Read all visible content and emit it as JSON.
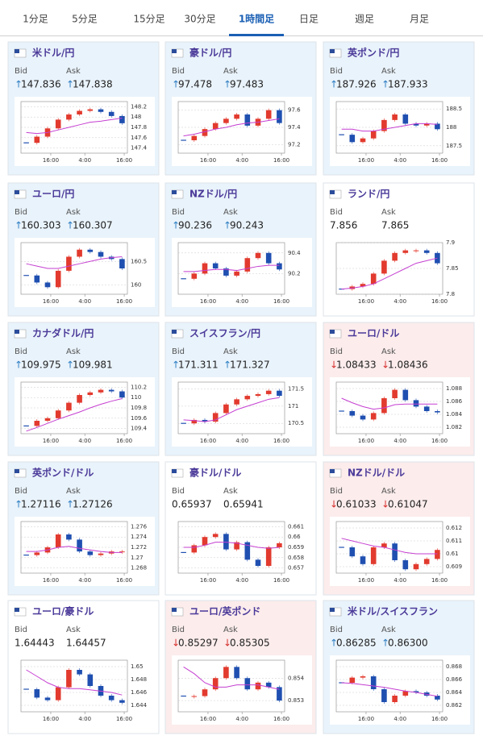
{
  "tabs": {
    "items": [
      "1分足",
      "5分足",
      "15分足",
      "30分足",
      "1時間足",
      "日足",
      "週足",
      "月足"
    ],
    "active": 4
  },
  "labels": {
    "bid": "Bid",
    "ask": "Ask"
  },
  "panels": [
    {
      "name": "米ドル/円",
      "trend": "↑",
      "bid": "147.836",
      "ask": "147.838",
      "chart": {
        "type": "candlestick",
        "ylim": [
          147.3,
          148.3
        ],
        "yticks": [
          147.4,
          147.6,
          147.8,
          148,
          148.2
        ],
        "xticks": [
          "16:00",
          "4:00",
          "16:00"
        ],
        "close": [
          147.5,
          147.62,
          147.78,
          147.95,
          148.05,
          148.12,
          148.15,
          148.1,
          148.02,
          147.88
        ],
        "ma": [
          147.7,
          147.68,
          147.7,
          147.75,
          147.8,
          147.85,
          147.9,
          147.92,
          147.95,
          147.98
        ]
      }
    },
    {
      "name": "豪ドル/円",
      "trend": "↑",
      "bid": "97.478",
      "ask": "97.483",
      "chart": {
        "type": "candlestick",
        "ylim": [
          97.1,
          97.7
        ],
        "yticks": [
          97.2,
          97.4,
          97.6
        ],
        "xticks": [
          "16:00",
          "4:00",
          "16:00"
        ],
        "close": [
          97.25,
          97.3,
          97.38,
          97.45,
          97.5,
          97.55,
          97.42,
          97.5,
          97.6,
          97.45
        ],
        "ma": [
          97.3,
          97.32,
          97.35,
          97.38,
          97.4,
          97.43,
          97.45,
          97.46,
          97.48,
          97.5
        ]
      }
    },
    {
      "name": "英ポンド/円",
      "trend": "↑",
      "bid": "187.926",
      "ask": "187.933",
      "chart": {
        "type": "candlestick",
        "ylim": [
          187.3,
          188.7
        ],
        "yticks": [
          187.5,
          188,
          188.5
        ],
        "xticks": [
          "16:00",
          "4:00",
          "16:00"
        ],
        "close": [
          187.8,
          187.6,
          187.7,
          187.9,
          188.2,
          188.35,
          188.1,
          188.05,
          188.1,
          187.95
        ],
        "ma": [
          187.95,
          187.95,
          187.9,
          187.9,
          187.95,
          188,
          188.05,
          188.1,
          188.1,
          188.08
        ]
      }
    },
    {
      "name": "ユーロ/円",
      "trend": "↑",
      "bid": "160.303",
      "ask": "160.307",
      "chart": {
        "type": "candlestick",
        "ylim": [
          159.8,
          160.9
        ],
        "yticks": [
          160,
          160.5
        ],
        "xticks": [
          "16:00",
          "4:00",
          "16:00"
        ],
        "close": [
          160.2,
          160.05,
          159.95,
          160.3,
          160.6,
          160.75,
          160.7,
          160.6,
          160.55,
          160.35
        ],
        "ma": [
          160.45,
          160.4,
          160.35,
          160.35,
          160.4,
          160.45,
          160.5,
          160.55,
          160.58,
          160.6
        ]
      }
    },
    {
      "name": "NZドル/円",
      "trend": "↑",
      "bid": "90.236",
      "ask": "90.243",
      "chart": {
        "type": "candlestick",
        "ylim": [
          90.0,
          90.5
        ],
        "yticks": [
          90.2,
          90.4
        ],
        "xticks": [
          "16:00",
          "4:00",
          "16:00"
        ],
        "close": [
          90.15,
          90.2,
          90.3,
          90.25,
          90.18,
          90.22,
          90.35,
          90.4,
          90.3,
          90.24
        ],
        "ma": [
          90.22,
          90.22,
          90.23,
          90.24,
          90.24,
          90.23,
          90.25,
          90.27,
          90.28,
          90.28
        ]
      }
    },
    {
      "name": "ランド/円",
      "bid": "7.856",
      "ask": "7.865",
      "chart": {
        "type": "candlestick",
        "ylim": [
          7.8,
          7.9
        ],
        "yticks": [
          7.8,
          7.85,
          7.9
        ],
        "xticks": [
          "16:00",
          "4:00",
          "16:00"
        ],
        "close": [
          7.81,
          7.815,
          7.82,
          7.84,
          7.865,
          7.88,
          7.885,
          7.885,
          7.88,
          7.86
        ],
        "ma": [
          7.81,
          7.812,
          7.815,
          7.82,
          7.83,
          7.84,
          7.85,
          7.86,
          7.865,
          7.87
        ]
      }
    },
    {
      "name": "カナダドル/円",
      "trend": "↑",
      "bid": "109.975",
      "ask": "109.981",
      "chart": {
        "type": "candlestick",
        "ylim": [
          109.3,
          110.3
        ],
        "yticks": [
          109.4,
          109.6,
          109.8,
          110,
          110.2
        ],
        "xticks": [
          "16:00",
          "4:00",
          "16:00"
        ],
        "close": [
          109.45,
          109.55,
          109.6,
          109.75,
          109.9,
          110.05,
          110.1,
          110.15,
          110.12,
          110.0
        ],
        "ma": [
          109.35,
          109.42,
          109.5,
          109.58,
          109.65,
          109.72,
          109.8,
          109.87,
          109.93,
          109.98
        ]
      }
    },
    {
      "name": "スイスフラン/円",
      "trend": "↑",
      "bid": "171.311",
      "ask": "171.327",
      "chart": {
        "type": "candlestick",
        "ylim": [
          170.2,
          171.7
        ],
        "yticks": [
          170.5,
          171,
          171.5
        ],
        "xticks": [
          "16:00",
          "4:00",
          "16:00"
        ],
        "close": [
          170.5,
          170.6,
          170.55,
          170.8,
          171.05,
          171.2,
          171.3,
          171.35,
          171.45,
          171.3
        ],
        "ma": [
          170.6,
          170.58,
          170.55,
          170.6,
          170.75,
          170.9,
          171,
          171.1,
          171.2,
          171.25
        ]
      }
    },
    {
      "name": "ユーロ/ドル",
      "trend": "↓",
      "bid": "1.08433",
      "ask": "1.08436",
      "chart": {
        "type": "candlestick",
        "ylim": [
          1.081,
          1.089
        ],
        "yticks": [
          1.082,
          1.084,
          1.086,
          1.088
        ],
        "xticks": [
          "16:00",
          "4:00",
          "16:00"
        ],
        "close": [
          1.0845,
          1.0838,
          1.0832,
          1.0842,
          1.0865,
          1.0878,
          1.0862,
          1.0852,
          1.0845,
          1.0843
        ],
        "ma": [
          1.0865,
          1.0858,
          1.0852,
          1.0848,
          1.085,
          1.0855,
          1.0856,
          1.0856,
          1.0856,
          1.0856
        ]
      }
    },
    {
      "name": "英ポンド/ドル",
      "trend": "↑",
      "bid": "1.27116",
      "ask": "1.27126",
      "chart": {
        "type": "candlestick",
        "ylim": [
          1.267,
          1.277
        ],
        "yticks": [
          1.268,
          1.27,
          1.272,
          1.274,
          1.276
        ],
        "xticks": [
          "16:00",
          "4:00",
          "16:00"
        ],
        "close": [
          1.2705,
          1.271,
          1.272,
          1.2745,
          1.2735,
          1.2712,
          1.2705,
          1.2708,
          1.2712,
          1.2712
        ],
        "ma": [
          1.2712,
          1.2712,
          1.2715,
          1.272,
          1.2722,
          1.2718,
          1.2715,
          1.2712,
          1.271,
          1.271
        ]
      }
    },
    {
      "name": "豪ドル/ドル",
      "bid": "0.65937",
      "ask": "0.65941",
      "chart": {
        "type": "candlestick",
        "ylim": [
          0.6565,
          0.6615
        ],
        "yticks": [
          0.657,
          0.658,
          0.659,
          0.66,
          0.661
        ],
        "xticks": [
          "16:00",
          "4:00",
          "16:00"
        ],
        "close": [
          0.6585,
          0.6592,
          0.66,
          0.6603,
          0.6588,
          0.6595,
          0.6578,
          0.6572,
          0.659,
          0.6594
        ],
        "ma": [
          0.659,
          0.659,
          0.6592,
          0.6595,
          0.6595,
          0.6594,
          0.6592,
          0.659,
          0.6589,
          0.659
        ]
      }
    },
    {
      "name": "NZドル/ドル",
      "trend": "↓",
      "bid": "0.61033",
      "ask": "0.61047",
      "chart": {
        "type": "candlestick",
        "ylim": [
          0.6085,
          0.6125
        ],
        "yticks": [
          0.609,
          0.61,
          0.611,
          0.612
        ],
        "xticks": [
          "16:00",
          "4:00",
          "16:00"
        ],
        "close": [
          0.6105,
          0.6098,
          0.6092,
          0.6105,
          0.6108,
          0.6095,
          0.6088,
          0.6092,
          0.6096,
          0.6103
        ],
        "ma": [
          0.6112,
          0.611,
          0.6108,
          0.6106,
          0.6105,
          0.6103,
          0.6101,
          0.61,
          0.61,
          0.61
        ]
      }
    },
    {
      "name": "ユーロ/豪ドル",
      "bid": "1.64443",
      "ask": "1.64457",
      "chart": {
        "type": "candlestick",
        "ylim": [
          1.643,
          1.651
        ],
        "yticks": [
          1.644,
          1.646,
          1.648,
          1.65
        ],
        "xticks": [
          "16:00",
          "4:00",
          "16:00"
        ],
        "close": [
          1.6465,
          1.6452,
          1.6448,
          1.6468,
          1.6495,
          1.6488,
          1.647,
          1.6455,
          1.6448,
          1.6444
        ],
        "ma": [
          1.6495,
          1.6485,
          1.6475,
          1.6468,
          1.6466,
          1.6466,
          1.6464,
          1.6462,
          1.646,
          1.6456
        ]
      }
    },
    {
      "name": "ユーロ/英ポンド",
      "trend": "↓",
      "bid": "0.85297",
      "ask": "0.85305",
      "chart": {
        "type": "candlestick",
        "ylim": [
          0.8525,
          0.8548
        ],
        "yticks": [
          0.853,
          0.854
        ],
        "xticks": [
          "16:00",
          "4:00",
          "16:00"
        ],
        "close": [
          0.8532,
          0.8532,
          0.8535,
          0.854,
          0.8545,
          0.854,
          0.8535,
          0.8538,
          0.8536,
          0.853
        ],
        "ma": [
          0.8545,
          0.8542,
          0.8538,
          0.8536,
          0.8536,
          0.8537,
          0.8537,
          0.8537,
          0.8536,
          0.8535
        ]
      }
    },
    {
      "name": "米ドル/スイスフラン",
      "trend": "↑",
      "bid": "0.86285",
      "ask": "0.86300",
      "chart": {
        "type": "candlestick",
        "ylim": [
          0.861,
          0.869
        ],
        "yticks": [
          0.862,
          0.864,
          0.866,
          0.868
        ],
        "xticks": [
          "16:00",
          "4:00",
          "16:00"
        ],
        "close": [
          0.8655,
          0.8663,
          0.8665,
          0.8645,
          0.8625,
          0.8635,
          0.8642,
          0.864,
          0.8635,
          0.8629
        ],
        "ma": [
          0.8655,
          0.8654,
          0.8652,
          0.865,
          0.8648,
          0.8645,
          0.8642,
          0.864,
          0.8637,
          0.8634
        ]
      }
    }
  ]
}
